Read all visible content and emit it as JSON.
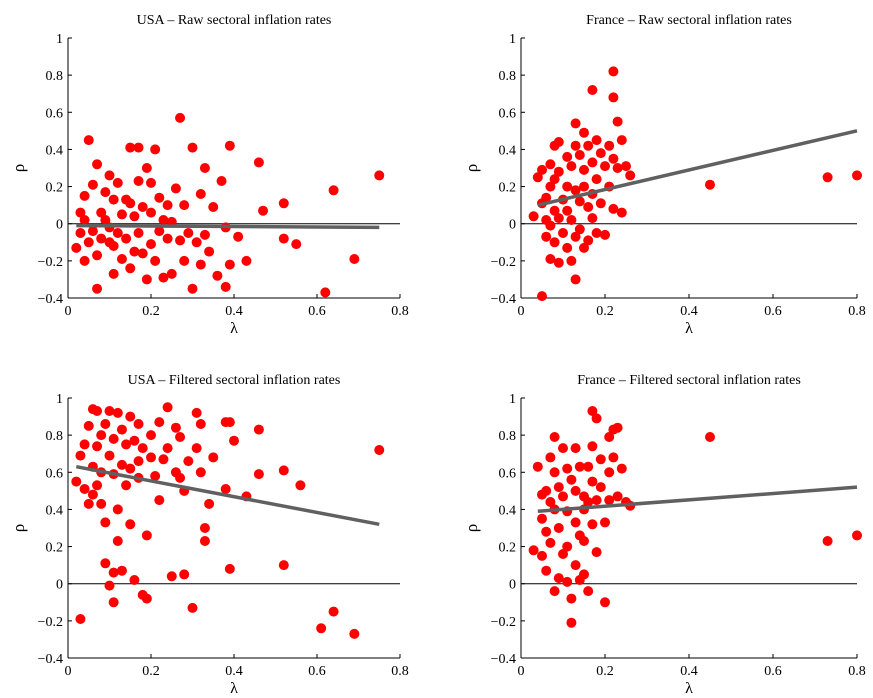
{
  "chart_data": [
    {
      "type": "scatter",
      "title": "USA – Raw sectoral inflation rates",
      "xlabel": "λ",
      "ylabel": "ρ",
      "xlim": [
        0,
        0.8
      ],
      "ylim": [
        -0.4,
        1
      ],
      "xticks": [
        "0",
        "0.2",
        "0.4",
        "0.6",
        "0.8"
      ],
      "yticks": [
        "−0.4",
        "−0.2",
        "0",
        "0.2",
        "0.4",
        "0.6",
        "0.8",
        "1"
      ],
      "zero_line": true,
      "marker_color": "#ff0000",
      "fit_color": "#606060",
      "fit_line": [
        [
          0.02,
          -0.01
        ],
        [
          0.75,
          -0.02
        ]
      ],
      "points": [
        [
          0.02,
          -0.13
        ],
        [
          0.03,
          -0.05
        ],
        [
          0.03,
          0.06
        ],
        [
          0.04,
          0.15
        ],
        [
          0.04,
          0.02
        ],
        [
          0.04,
          -0.2
        ],
        [
          0.05,
          0.45
        ],
        [
          0.05,
          -0.1
        ],
        [
          0.06,
          0.21
        ],
        [
          0.06,
          -0.04
        ],
        [
          0.07,
          0.32
        ],
        [
          0.07,
          -0.35
        ],
        [
          0.07,
          -0.17
        ],
        [
          0.08,
          0.06
        ],
        [
          0.08,
          -0.08
        ],
        [
          0.09,
          0.17
        ],
        [
          0.09,
          0.02
        ],
        [
          0.1,
          0.26
        ],
        [
          0.1,
          -0.02
        ],
        [
          0.1,
          -0.1
        ],
        [
          0.11,
          0.13
        ],
        [
          0.11,
          -0.27
        ],
        [
          0.11,
          -0.12
        ],
        [
          0.12,
          0.22
        ],
        [
          0.12,
          -0.05
        ],
        [
          0.13,
          0.05
        ],
        [
          0.13,
          -0.19
        ],
        [
          0.14,
          0.13
        ],
        [
          0.14,
          -0.08
        ],
        [
          0.15,
          0.41
        ],
        [
          0.15,
          0.11
        ],
        [
          0.15,
          -0.24
        ],
        [
          0.16,
          0.04
        ],
        [
          0.16,
          -0.15
        ],
        [
          0.17,
          0.41
        ],
        [
          0.17,
          0.23
        ],
        [
          0.17,
          -0.05
        ],
        [
          0.18,
          0.09
        ],
        [
          0.18,
          -0.16
        ],
        [
          0.19,
          0.3
        ],
        [
          0.19,
          -0.3
        ],
        [
          0.2,
          0.22
        ],
        [
          0.2,
          0.06
        ],
        [
          0.2,
          -0.11
        ],
        [
          0.21,
          0.4
        ],
        [
          0.21,
          -0.2
        ],
        [
          0.22,
          0.14
        ],
        [
          0.22,
          -0.04
        ],
        [
          0.23,
          0.02
        ],
        [
          0.23,
          -0.29
        ],
        [
          0.24,
          0.1
        ],
        [
          0.24,
          -0.08
        ],
        [
          0.25,
          0.01
        ],
        [
          0.25,
          -0.27
        ],
        [
          0.26,
          0.19
        ],
        [
          0.27,
          -0.09
        ],
        [
          0.27,
          0.57
        ],
        [
          0.28,
          -0.2
        ],
        [
          0.28,
          0.1
        ],
        [
          0.29,
          -0.05
        ],
        [
          0.3,
          0.41
        ],
        [
          0.3,
          -0.35
        ],
        [
          0.31,
          -0.1
        ],
        [
          0.32,
          0.16
        ],
        [
          0.32,
          -0.22
        ],
        [
          0.33,
          0.3
        ],
        [
          0.33,
          -0.06
        ],
        [
          0.34,
          -0.15
        ],
        [
          0.35,
          0.09
        ],
        [
          0.36,
          -0.28
        ],
        [
          0.37,
          0.23
        ],
        [
          0.38,
          -0.02
        ],
        [
          0.38,
          -0.34
        ],
        [
          0.39,
          0.42
        ],
        [
          0.39,
          -0.22
        ],
        [
          0.41,
          -0.07
        ],
        [
          0.43,
          -0.2
        ],
        [
          0.46,
          0.33
        ],
        [
          0.47,
          0.07
        ],
        [
          0.52,
          -0.08
        ],
        [
          0.52,
          0.11
        ],
        [
          0.55,
          -0.11
        ],
        [
          0.62,
          -0.37
        ],
        [
          0.64,
          0.18
        ],
        [
          0.69,
          -0.19
        ],
        [
          0.75,
          0.26
        ]
      ]
    },
    {
      "type": "scatter",
      "title": "France – Raw sectoral inflation rates",
      "xlabel": "λ",
      "ylabel": "ρ",
      "xlim": [
        0,
        0.8
      ],
      "ylim": [
        -0.4,
        1
      ],
      "xticks": [
        "0",
        "0.2",
        "0.4",
        "0.6",
        "0.8"
      ],
      "yticks": [
        "−0.4",
        "−0.2",
        "0",
        "0.2",
        "0.4",
        "0.6",
        "0.8",
        "1"
      ],
      "zero_line": true,
      "marker_color": "#ff0000",
      "fit_color": "#606060",
      "fit_line": [
        [
          0.04,
          0.1
        ],
        [
          0.8,
          0.5
        ]
      ],
      "points": [
        [
          0.03,
          0.04
        ],
        [
          0.04,
          0.25
        ],
        [
          0.05,
          -0.39
        ],
        [
          0.05,
          0.11
        ],
        [
          0.05,
          0.29
        ],
        [
          0.06,
          0.02
        ],
        [
          0.06,
          0.14
        ],
        [
          0.06,
          -0.07
        ],
        [
          0.07,
          0.32
        ],
        [
          0.07,
          0.2
        ],
        [
          0.07,
          -0.01
        ],
        [
          0.07,
          -0.19
        ],
        [
          0.08,
          0.42
        ],
        [
          0.08,
          0.24
        ],
        [
          0.08,
          0.07
        ],
        [
          0.08,
          -0.1
        ],
        [
          0.09,
          0.44
        ],
        [
          0.09,
          0.28
        ],
        [
          0.09,
          -0.21
        ],
        [
          0.09,
          0.03
        ],
        [
          0.1,
          0.13
        ],
        [
          0.1,
          -0.05
        ],
        [
          0.11,
          0.36
        ],
        [
          0.11,
          0.2
        ],
        [
          0.11,
          0.07
        ],
        [
          0.11,
          -0.13
        ],
        [
          0.12,
          0.31
        ],
        [
          0.12,
          -0.2
        ],
        [
          0.12,
          0.02
        ],
        [
          0.13,
          0.54
        ],
        [
          0.13,
          0.42
        ],
        [
          0.13,
          0.18
        ],
        [
          0.13,
          -0.07
        ],
        [
          0.13,
          -0.3
        ],
        [
          0.14,
          0.37
        ],
        [
          0.14,
          0.12
        ],
        [
          0.14,
          -0.03
        ],
        [
          0.15,
          0.49
        ],
        [
          0.15,
          0.29
        ],
        [
          0.15,
          0.2
        ],
        [
          0.15,
          -0.13
        ],
        [
          0.16,
          0.42
        ],
        [
          0.16,
          0.09
        ],
        [
          0.16,
          -0.09
        ],
        [
          0.17,
          0.72
        ],
        [
          0.17,
          0.33
        ],
        [
          0.17,
          0.16
        ],
        [
          0.17,
          0.03
        ],
        [
          0.18,
          0.45
        ],
        [
          0.18,
          0.24
        ],
        [
          0.18,
          -0.05
        ],
        [
          0.19,
          0.38
        ],
        [
          0.19,
          0.11
        ],
        [
          0.2,
          0.31
        ],
        [
          0.2,
          -0.06
        ],
        [
          0.21,
          0.42
        ],
        [
          0.21,
          0.2
        ],
        [
          0.22,
          0.82
        ],
        [
          0.22,
          0.68
        ],
        [
          0.22,
          0.35
        ],
        [
          0.22,
          0.08
        ],
        [
          0.23,
          0.55
        ],
        [
          0.23,
          0.3
        ],
        [
          0.24,
          0.45
        ],
        [
          0.24,
          0.06
        ],
        [
          0.25,
          0.31
        ],
        [
          0.26,
          0.26
        ],
        [
          0.45,
          0.21
        ],
        [
          0.73,
          0.25
        ],
        [
          0.8,
          0.26
        ]
      ]
    },
    {
      "type": "scatter",
      "title": "USA – Filtered sectoral inflation rates",
      "xlabel": "λ",
      "ylabel": "ρ",
      "xlim": [
        0,
        0.8
      ],
      "ylim": [
        -0.4,
        1
      ],
      "xticks": [
        "0",
        "0.2",
        "0.4",
        "0.6",
        "0.8"
      ],
      "yticks": [
        "−0.4",
        "−0.2",
        "0",
        "0.2",
        "0.4",
        "0.6",
        "0.8",
        "1"
      ],
      "zero_line": true,
      "marker_color": "#ff0000",
      "fit_color": "#606060",
      "fit_line": [
        [
          0.02,
          0.63
        ],
        [
          0.75,
          0.32
        ]
      ],
      "points": [
        [
          0.02,
          0.55
        ],
        [
          0.03,
          0.69
        ],
        [
          0.03,
          -0.19
        ],
        [
          0.04,
          0.75
        ],
        [
          0.04,
          0.51
        ],
        [
          0.05,
          0.85
        ],
        [
          0.05,
          0.43
        ],
        [
          0.06,
          0.94
        ],
        [
          0.06,
          0.63
        ],
        [
          0.06,
          0.48
        ],
        [
          0.07,
          0.93
        ],
        [
          0.07,
          0.74
        ],
        [
          0.07,
          0.53
        ],
        [
          0.08,
          0.8
        ],
        [
          0.08,
          0.6
        ],
        [
          0.08,
          0.43
        ],
        [
          0.09,
          0.86
        ],
        [
          0.09,
          0.11
        ],
        [
          0.09,
          0.33
        ],
        [
          0.1,
          0.93
        ],
        [
          0.1,
          0.69
        ],
        [
          0.1,
          -0.01
        ],
        [
          0.11,
          0.78
        ],
        [
          0.11,
          0.59
        ],
        [
          0.11,
          0.06
        ],
        [
          0.11,
          -0.1
        ],
        [
          0.12,
          0.92
        ],
        [
          0.12,
          0.4
        ],
        [
          0.12,
          0.23
        ],
        [
          0.13,
          0.83
        ],
        [
          0.13,
          0.64
        ],
        [
          0.13,
          0.07
        ],
        [
          0.14,
          0.75
        ],
        [
          0.14,
          0.53
        ],
        [
          0.15,
          0.9
        ],
        [
          0.15,
          0.62
        ],
        [
          0.15,
          0.32
        ],
        [
          0.16,
          0.77
        ],
        [
          0.16,
          0.02
        ],
        [
          0.17,
          0.86
        ],
        [
          0.17,
          0.66
        ],
        [
          0.17,
          0.57
        ],
        [
          0.18,
          0.73
        ],
        [
          0.18,
          -0.06
        ],
        [
          0.19,
          0.26
        ],
        [
          0.19,
          -0.08
        ],
        [
          0.2,
          0.68
        ],
        [
          0.2,
          0.8
        ],
        [
          0.21,
          0.58
        ],
        [
          0.22,
          0.87
        ],
        [
          0.22,
          0.45
        ],
        [
          0.23,
          0.67
        ],
        [
          0.24,
          0.95
        ],
        [
          0.24,
          0.73
        ],
        [
          0.25,
          0.04
        ],
        [
          0.26,
          0.84
        ],
        [
          0.26,
          0.6
        ],
        [
          0.27,
          0.79
        ],
        [
          0.27,
          0.57
        ],
        [
          0.28,
          0.5
        ],
        [
          0.28,
          0.05
        ],
        [
          0.29,
          0.66
        ],
        [
          0.3,
          -0.13
        ],
        [
          0.31,
          0.92
        ],
        [
          0.31,
          0.73
        ],
        [
          0.32,
          0.86
        ],
        [
          0.32,
          0.6
        ],
        [
          0.33,
          0.23
        ],
        [
          0.33,
          0.3
        ],
        [
          0.34,
          0.43
        ],
        [
          0.35,
          0.68
        ],
        [
          0.38,
          0.87
        ],
        [
          0.38,
          0.51
        ],
        [
          0.39,
          0.87
        ],
        [
          0.39,
          0.08
        ],
        [
          0.4,
          0.77
        ],
        [
          0.43,
          0.47
        ],
        [
          0.46,
          0.59
        ],
        [
          0.46,
          0.83
        ],
        [
          0.52,
          0.1
        ],
        [
          0.52,
          0.61
        ],
        [
          0.56,
          0.53
        ],
        [
          0.61,
          -0.24
        ],
        [
          0.64,
          -0.15
        ],
        [
          0.69,
          -0.27
        ],
        [
          0.75,
          0.72
        ]
      ]
    },
    {
      "type": "scatter",
      "title": "France – Filtered sectoral inflation rates",
      "xlabel": "λ",
      "ylabel": "ρ",
      "xlim": [
        0,
        0.8
      ],
      "ylim": [
        -0.4,
        1
      ],
      "xticks": [
        "0",
        "0.2",
        "0.4",
        "0.6",
        "0.8"
      ],
      "yticks": [
        "−0.4",
        "−0.2",
        "0",
        "0.2",
        "0.4",
        "0.6",
        "0.8",
        "1"
      ],
      "zero_line": true,
      "marker_color": "#ff0000",
      "fit_color": "#606060",
      "fit_line": [
        [
          0.04,
          0.39
        ],
        [
          0.8,
          0.52
        ]
      ],
      "points": [
        [
          0.03,
          0.18
        ],
        [
          0.04,
          0.63
        ],
        [
          0.05,
          0.48
        ],
        [
          0.05,
          0.15
        ],
        [
          0.05,
          0.35
        ],
        [
          0.06,
          0.5
        ],
        [
          0.06,
          0.28
        ],
        [
          0.06,
          0.07
        ],
        [
          0.07,
          0.68
        ],
        [
          0.07,
          0.44
        ],
        [
          0.07,
          0.22
        ],
        [
          0.08,
          0.79
        ],
        [
          0.08,
          0.6
        ],
        [
          0.08,
          0.4
        ],
        [
          0.08,
          -0.04
        ],
        [
          0.09,
          0.52
        ],
        [
          0.09,
          0.3
        ],
        [
          0.09,
          0.03
        ],
        [
          0.1,
          0.73
        ],
        [
          0.1,
          0.47
        ],
        [
          0.1,
          0.16
        ],
        [
          0.11,
          0.62
        ],
        [
          0.11,
          0.39
        ],
        [
          0.11,
          0.2
        ],
        [
          0.11,
          0.01
        ],
        [
          0.12,
          0.56
        ],
        [
          0.12,
          -0.21
        ],
        [
          0.12,
          -0.08
        ],
        [
          0.13,
          0.73
        ],
        [
          0.13,
          0.5
        ],
        [
          0.13,
          0.33
        ],
        [
          0.13,
          0.1
        ],
        [
          0.14,
          0.63
        ],
        [
          0.14,
          0.26
        ],
        [
          0.14,
          0.02
        ],
        [
          0.15,
          0.47
        ],
        [
          0.15,
          0.4
        ],
        [
          0.15,
          0.23
        ],
        [
          0.15,
          0.05
        ],
        [
          0.16,
          0.63
        ],
        [
          0.16,
          0.44
        ],
        [
          0.16,
          -0.04
        ],
        [
          0.17,
          0.93
        ],
        [
          0.17,
          0.74
        ],
        [
          0.17,
          0.55
        ],
        [
          0.17,
          0.32
        ],
        [
          0.18,
          0.89
        ],
        [
          0.18,
          0.45
        ],
        [
          0.18,
          0.17
        ],
        [
          0.19,
          0.67
        ],
        [
          0.19,
          0.52
        ],
        [
          0.2,
          0.33
        ],
        [
          0.2,
          -0.1
        ],
        [
          0.21,
          0.79
        ],
        [
          0.21,
          0.6
        ],
        [
          0.21,
          0.45
        ],
        [
          0.22,
          0.83
        ],
        [
          0.22,
          0.68
        ],
        [
          0.23,
          0.84
        ],
        [
          0.23,
          0.47
        ],
        [
          0.24,
          0.62
        ],
        [
          0.25,
          0.44
        ],
        [
          0.26,
          0.42
        ],
        [
          0.45,
          0.79
        ],
        [
          0.73,
          0.23
        ],
        [
          0.8,
          0.26
        ]
      ]
    }
  ]
}
